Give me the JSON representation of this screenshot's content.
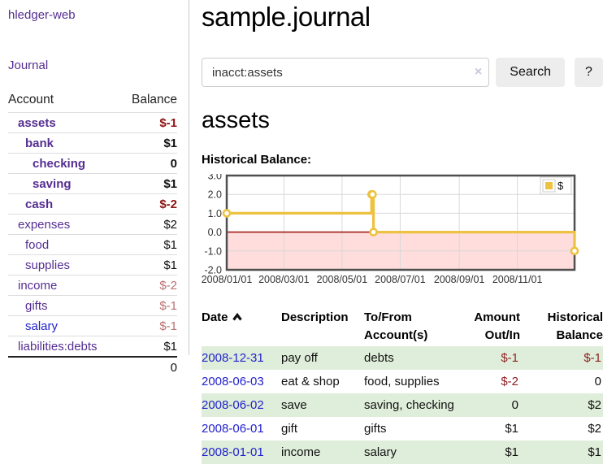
{
  "brand": "hledger-web",
  "nav": {
    "journal": "Journal"
  },
  "sidebar": {
    "headers": {
      "account": "Account",
      "balance": "Balance"
    },
    "rows": [
      {
        "account": "assets",
        "balance": "$-1",
        "level": 1,
        "in_account": true,
        "link": "purple",
        "balance_class": "neg"
      },
      {
        "account": "bank",
        "balance": "$1",
        "level": 2,
        "in_account": true,
        "link": "purple",
        "balance_class": ""
      },
      {
        "account": "checking",
        "balance": "0",
        "level": 3,
        "in_account": true,
        "link": "purple",
        "balance_class": ""
      },
      {
        "account": "saving",
        "balance": "$1",
        "level": 3,
        "in_account": true,
        "link": "purple",
        "balance_class": ""
      },
      {
        "account": "cash",
        "balance": "$-2",
        "level": 2,
        "in_account": true,
        "link": "purple",
        "balance_class": "neg"
      },
      {
        "account": "expenses",
        "balance": "$2",
        "level": 1,
        "in_account": false,
        "link": "purple",
        "balance_class": ""
      },
      {
        "account": "food",
        "balance": "$1",
        "level": 2,
        "in_account": false,
        "link": "purple",
        "balance_class": ""
      },
      {
        "account": "supplies",
        "balance": "$1",
        "level": 2,
        "in_account": false,
        "link": "purple",
        "balance_class": ""
      },
      {
        "account": "income",
        "balance": "$-2",
        "level": 1,
        "in_account": false,
        "link": "purple",
        "balance_class": "softneg"
      },
      {
        "account": "gifts",
        "balance": "$-1",
        "level": 2,
        "in_account": false,
        "link": "purple",
        "balance_class": "softneg"
      },
      {
        "account": "salary",
        "balance": "$-1",
        "level": 2,
        "in_account": false,
        "link": "blue",
        "balance_class": "softneg"
      },
      {
        "account": "liabilities:debts",
        "balance": "$1",
        "level": 1,
        "in_account": false,
        "link": "purple",
        "balance_class": ""
      }
    ],
    "total": "0"
  },
  "header": {
    "title": "sample.journal"
  },
  "search": {
    "value": "inacct:assets",
    "clear_icon": "×",
    "search_label": "Search",
    "help_label": "?"
  },
  "account_page": {
    "heading": "assets",
    "chart_label": "Historical Balance:"
  },
  "chart_data": {
    "type": "line",
    "step": true,
    "title": "Historical Balance:",
    "series": [
      {
        "name": "$",
        "color": "#edc240",
        "points": [
          [
            "2008-01-01",
            1
          ],
          [
            "2008-06-01",
            2
          ],
          [
            "2008-06-02",
            2
          ],
          [
            "2008-06-03",
            0
          ],
          [
            "2008-12-31",
            -1
          ]
        ]
      }
    ],
    "x_ticks": [
      "2008/01/01",
      "2008/03/01",
      "2008/05/01",
      "2008/07/01",
      "2008/09/01",
      "2008/11/01"
    ],
    "y_ticks": [
      3.0,
      2.0,
      1.0,
      0.0,
      -1.0,
      -2.0
    ],
    "ylim": [
      -2,
      3
    ],
    "xlim": [
      "2008-01-01",
      "2008-12-31"
    ],
    "grid": true,
    "legend_position": "top-right",
    "colors": {
      "negative_fill": "#ffdddd",
      "zero_line": "#a01818",
      "grid_line": "#d8d8d8",
      "plot_border": "#4f4f4f",
      "marker_fill": "#ffffff"
    }
  },
  "register": {
    "headers": {
      "date": "Date",
      "description": "Description",
      "accounts": "To/From Account(s)",
      "amount": "Amount Out/In",
      "balance": "Historical Balance"
    },
    "rows": [
      {
        "date": "2008-12-31",
        "description": "pay off",
        "accounts": "debts",
        "amount": "$-1",
        "balance": "$-1",
        "amount_neg": true,
        "balance_neg": true,
        "stripe": true
      },
      {
        "date": "2008-06-03",
        "description": "eat & shop",
        "accounts": "food, supplies",
        "amount": "$-2",
        "balance": "0",
        "amount_neg": true,
        "balance_neg": false,
        "stripe": false
      },
      {
        "date": "2008-06-02",
        "description": "save",
        "accounts": "saving, checking",
        "amount": "0",
        "balance": "$2",
        "amount_neg": false,
        "balance_neg": false,
        "stripe": true
      },
      {
        "date": "2008-06-01",
        "description": "gift",
        "accounts": "gifts",
        "amount": "$1",
        "balance": "$2",
        "amount_neg": false,
        "balance_neg": false,
        "stripe": false
      },
      {
        "date": "2008-01-01",
        "description": "income",
        "accounts": "salary",
        "amount": "$1",
        "balance": "$1",
        "amount_neg": false,
        "balance_neg": false,
        "stripe": true
      }
    ]
  }
}
